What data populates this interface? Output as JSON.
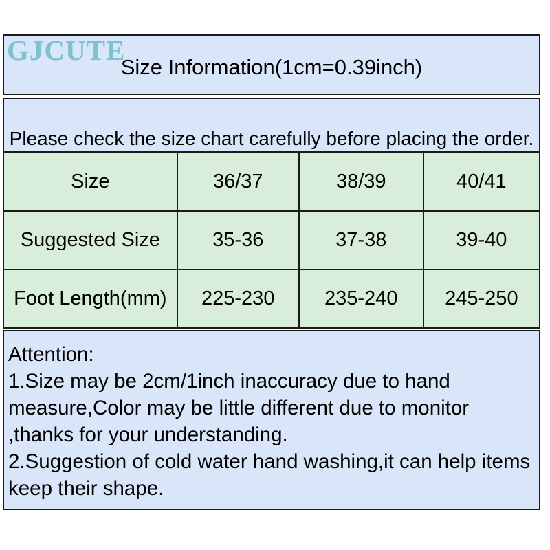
{
  "brand": {
    "logo_text": "GJCUTE"
  },
  "header": {
    "title": "Size Information(1cm=0.39inch)"
  },
  "note": {
    "text": "Please check the size chart carefully before placing the order."
  },
  "size_table": {
    "rows": [
      {
        "label": "Size",
        "values": [
          "36/37",
          "38/39",
          "40/41"
        ]
      },
      {
        "label": "Suggested Size",
        "values": [
          "35-36",
          "37-38",
          "39-40"
        ]
      },
      {
        "label": "Foot Length(mm)",
        "values": [
          "225-230",
          "235-240",
          "245-250"
        ]
      }
    ]
  },
  "attention": {
    "heading": "Attention:",
    "lines": [
      "1.Size may be 2cm/1inch inaccuracy due to hand",
      "measure,Color may be little different due to monitor",
      ",thanks for your understanding.",
      "2.Suggestion of cold water hand washing,it can help items",
      "keep their shape."
    ]
  },
  "colors": {
    "section_blue": "#d9e5f8",
    "table_green": "#d9eeda",
    "border_black": "#1b1b1b",
    "logo_teal": "#7fc1ce"
  }
}
